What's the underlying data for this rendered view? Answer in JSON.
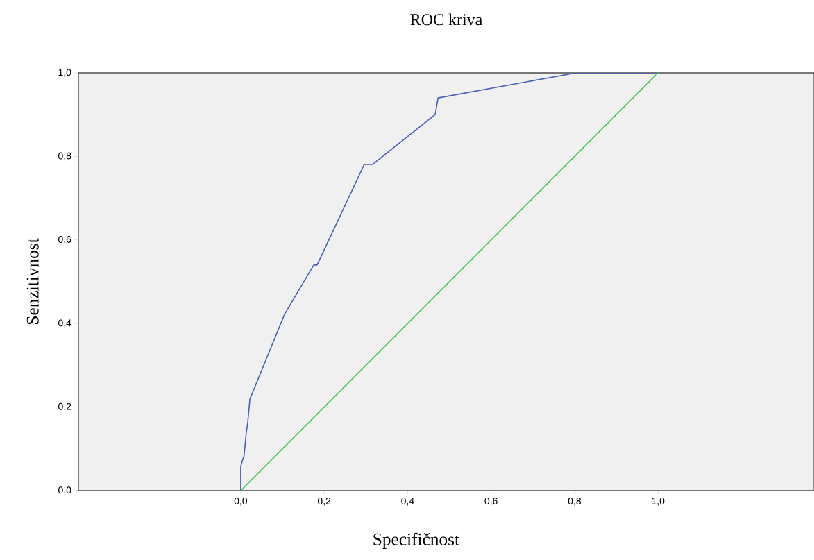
{
  "chart_data": {
    "type": "line",
    "title": "ROC kriva",
    "xlabel": "Specifičnost",
    "ylabel": "Senzitivnost",
    "xlim": [
      -0.389,
      1.374
    ],
    "ylim": [
      0,
      1
    ],
    "xticks": [
      {
        "value": 0,
        "label": "0,0"
      },
      {
        "value": 0.2,
        "label": "0,2"
      },
      {
        "value": 0.4,
        "label": "0,4"
      },
      {
        "value": 0.6,
        "label": "0,6"
      },
      {
        "value": 0.8,
        "label": "0,8"
      },
      {
        "value": 1,
        "label": "1,0"
      }
    ],
    "yticks": [
      {
        "value": 0,
        "label": "0,0"
      },
      {
        "value": 0.2,
        "label": "0,2"
      },
      {
        "value": 0.4,
        "label": "0,4"
      },
      {
        "value": 0.6,
        "label": "0,6"
      },
      {
        "value": 0.8,
        "label": "0,8"
      },
      {
        "value": 1,
        "label": "1,0"
      }
    ],
    "grid": false,
    "marker": "none",
    "series": [
      {
        "color": "#4a5fb5",
        "x": [
          0,
          0,
          0.005,
          0.008,
          0.013,
          0.017,
          0.022,
          0.105,
          0.175,
          0.183,
          0.296,
          0.316,
          0.466,
          0.473,
          0.804,
          1.0
        ],
        "values": [
          0,
          0.058,
          0.075,
          0.083,
          0.136,
          0.165,
          0.219,
          0.422,
          0.54,
          0.54,
          0.781,
          0.781,
          0.9,
          0.94,
          1.0,
          1.0
        ]
      },
      {
        "color": "#3cbf4a",
        "x": [
          0,
          1
        ],
        "values": [
          0,
          1
        ]
      }
    ]
  }
}
